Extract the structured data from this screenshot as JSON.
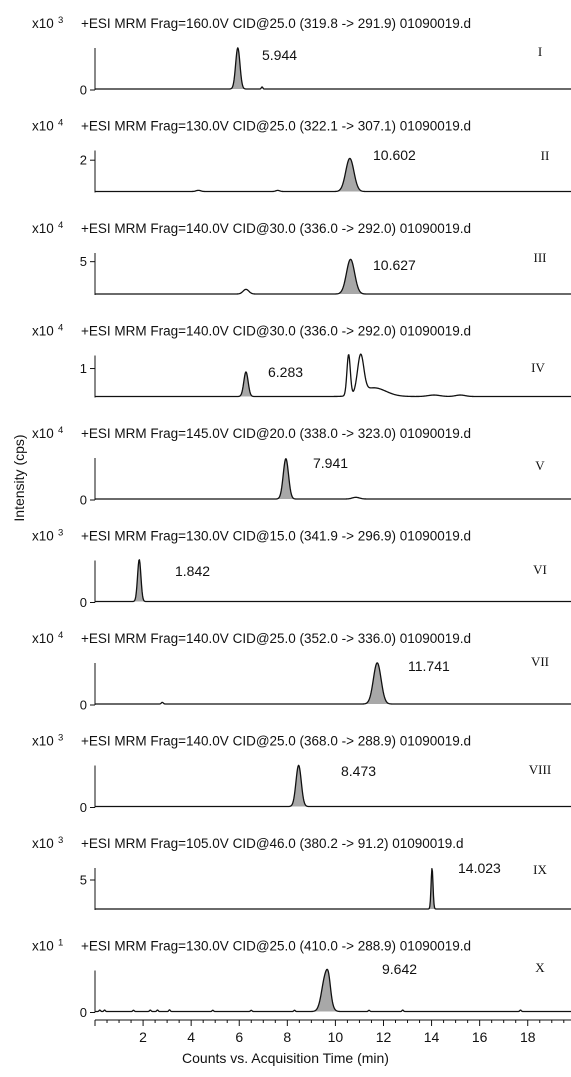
{
  "chart_data": {
    "type": "line",
    "ylabel": "Intensity (cps)",
    "xlabel": "Counts vs. Acquisition Time (min)",
    "xlim": [
      0,
      19.8
    ],
    "xticks": [
      2,
      4,
      6,
      8,
      10,
      12,
      14,
      16,
      18
    ],
    "panels": [
      {
        "roman": "I",
        "multiplier": "x10",
        "exponent": "3",
        "header": "+ESI MRM Frag=160.0V CID@25.0 (319.8 -> 291.9) 01090019.d",
        "ylim": [
          0,
          1
        ],
        "yticks": [
          0
        ],
        "peak_rt": 5.944,
        "peak_label": "5.944",
        "peaks": [
          {
            "t": 5.94,
            "h": 0.98,
            "w": 0.09
          },
          {
            "t": 6.95,
            "h": 0.05,
            "w": 0.03
          }
        ],
        "extra": []
      },
      {
        "roman": "II",
        "multiplier": "x10",
        "exponent": "4",
        "header": "+ESI MRM Frag=130.0V CID@25.0 (322.1 -> 307.1) 01090019.d",
        "ylim": [
          0,
          2.6
        ],
        "yticks": [
          2
        ],
        "peak_rt": 10.602,
        "peak_label": "10.602",
        "peaks": [
          {
            "t": 10.6,
            "h": 2.05,
            "w": 0.17
          },
          {
            "t": 4.3,
            "h": 0.07,
            "w": 0.1
          },
          {
            "t": 7.6,
            "h": 0.07,
            "w": 0.08
          }
        ],
        "extra": []
      },
      {
        "roman": "III",
        "multiplier": "x10",
        "exponent": "4",
        "header": "+ESI MRM Frag=140.0V CID@30.0 (336.0 -> 292.0) 01090019.d",
        "ylim": [
          0,
          6.3
        ],
        "yticks": [
          5
        ],
        "peak_rt": 10.627,
        "peak_label": "10.627",
        "peaks": [
          {
            "t": 10.63,
            "h": 5.2,
            "w": 0.17
          },
          {
            "t": 6.28,
            "h": 0.7,
            "w": 0.12
          }
        ],
        "extra": []
      },
      {
        "roman": "IV",
        "multiplier": "x10",
        "exponent": "4",
        "header": "+ESI MRM Frag=140.0V CID@30.0 (336.0 -> 292.0) 01090019.d",
        "ylim": [
          0,
          1.45
        ],
        "yticks": [
          1
        ],
        "peak_rt": 6.283,
        "peak_label": "6.283",
        "peaks": [
          {
            "t": 6.28,
            "h": 0.85,
            "w": 0.09
          }
        ],
        "extra": [
          {
            "t": 10.55,
            "h": 1.42,
            "w": 0.07
          },
          {
            "t": 11.05,
            "h": 1.3,
            "w": 0.13
          },
          {
            "t": 11.6,
            "h": 0.3,
            "w": 0.5
          },
          {
            "t": 14.1,
            "h": 0.05,
            "w": 0.25
          },
          {
            "t": 15.2,
            "h": 0.05,
            "w": 0.2
          }
        ]
      },
      {
        "roman": "V",
        "multiplier": "x10",
        "exponent": "4",
        "header": "+ESI MRM Frag=145.0V CID@20.0 (338.0 -> 323.0) 01090019.d",
        "ylim": [
          0,
          1
        ],
        "yticks": [
          0
        ],
        "peak_rt": 7.941,
        "peak_label": "7.941",
        "peaks": [
          {
            "t": 7.94,
            "h": 0.96,
            "w": 0.11
          },
          {
            "t": 10.85,
            "h": 0.04,
            "w": 0.15
          }
        ],
        "extra": []
      },
      {
        "roman": "VI",
        "multiplier": "x10",
        "exponent": "3",
        "header": "+ESI MRM Frag=130.0V CID@15.0 (341.9 -> 296.9) 01090019.d",
        "ylim": [
          0,
          1
        ],
        "yticks": [
          0
        ],
        "peak_rt": 1.842,
        "peak_label": "1.842",
        "peaks": [
          {
            "t": 1.84,
            "h": 1.0,
            "w": 0.07
          }
        ],
        "extra": []
      },
      {
        "roman": "VII",
        "multiplier": "x10",
        "exponent": "4",
        "header": "+ESI MRM Frag=140.0V CID@25.0 (352.0 -> 336.0) 01090019.d",
        "ylim": [
          0,
          1
        ],
        "yticks": [
          0
        ],
        "peak_rt": 11.741,
        "peak_label": "11.741",
        "peaks": [
          {
            "t": 11.74,
            "h": 0.98,
            "w": 0.16
          },
          {
            "t": 2.8,
            "h": 0.04,
            "w": 0.04
          }
        ],
        "extra": []
      },
      {
        "roman": "VIII",
        "multiplier": "x10",
        "exponent": "3",
        "header": "+ESI MRM Frag=140.0V CID@25.0 (368.0 -> 288.9) 01090019.d",
        "ylim": [
          0,
          1
        ],
        "yticks": [
          0
        ],
        "peak_rt": 8.473,
        "peak_label": "8.473",
        "peaks": [
          {
            "t": 8.47,
            "h": 0.98,
            "w": 0.11
          }
        ],
        "extra": []
      },
      {
        "roman": "IX",
        "multiplier": "x10",
        "exponent": "3",
        "header": "+ESI MRM Frag=105.0V CID@46.0 (380.2 -> 91.2) 01090019.d",
        "ylim": [
          0,
          7
        ],
        "yticks": [
          5
        ],
        "peak_rt": 14.023,
        "peak_label": "14.023",
        "peaks": [
          {
            "t": 14.02,
            "h": 6.8,
            "w": 0.04
          }
        ],
        "extra": []
      },
      {
        "roman": "X",
        "multiplier": "x10",
        "exponent": "1",
        "header": "+ESI MRM Frag=130.0V CID@25.0 (410.0 -> 288.9) 01090019.d",
        "ylim": [
          0,
          2
        ],
        "yticks": [
          0
        ],
        "peak_rt": 9.642,
        "peak_label": "9.642",
        "peaks": [
          {
            "t": 9.6,
            "h": 1.75,
            "w": 0.16
          },
          {
            "t": 9.72,
            "h": 0.5,
            "w": 0.08
          }
        ],
        "extra": [
          {
            "t": 0.2,
            "h": 0.07,
            "w": 0.03
          },
          {
            "t": 0.4,
            "h": 0.07,
            "w": 0.03
          },
          {
            "t": 1.6,
            "h": 0.06,
            "w": 0.03
          },
          {
            "t": 2.3,
            "h": 0.07,
            "w": 0.03
          },
          {
            "t": 2.6,
            "h": 0.07,
            "w": 0.03
          },
          {
            "t": 3.1,
            "h": 0.08,
            "w": 0.03
          },
          {
            "t": 4.9,
            "h": 0.06,
            "w": 0.03
          },
          {
            "t": 6.5,
            "h": 0.06,
            "w": 0.03
          },
          {
            "t": 8.3,
            "h": 0.06,
            "w": 0.03
          },
          {
            "t": 11.4,
            "h": 0.06,
            "w": 0.03
          },
          {
            "t": 12.8,
            "h": 0.07,
            "w": 0.03
          },
          {
            "t": 17.7,
            "h": 0.07,
            "w": 0.03
          }
        ]
      }
    ],
    "fill_color": "#a8a8a8",
    "line_color": "#111111"
  }
}
